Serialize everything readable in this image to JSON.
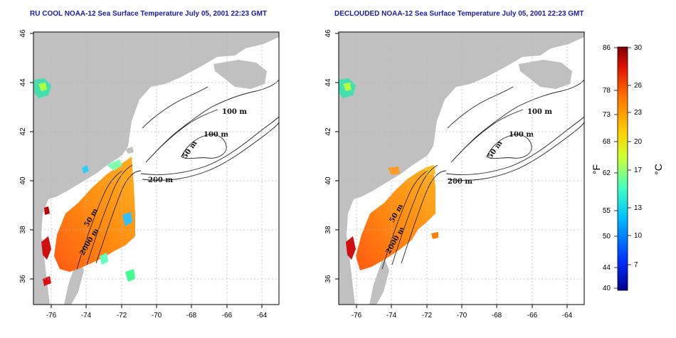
{
  "maps": [
    {
      "title": "RU COOL NOAA-12 Sea Surface Temperature July 05, 2001 22:23 GMT",
      "contour_labels": [
        "100 m",
        "100 m",
        "50 m",
        "200 m",
        "50 m",
        "2000 m"
      ]
    },
    {
      "title": "DECLOUDED NOAA-12 Sea Surface Temperature July 05, 2001 22:23 GMT",
      "contour_labels": [
        "100 m",
        "100 m",
        "50 m",
        "200 m",
        "50 m",
        "2000 m"
      ]
    }
  ],
  "axes": {
    "x_ticks": [
      "-76",
      "-74",
      "-72",
      "-70",
      "-68",
      "-66",
      "-64"
    ],
    "y_ticks": [
      "36",
      "38",
      "40",
      "42",
      "44",
      "46"
    ]
  },
  "colorbar": {
    "fahrenheit_label": "°F",
    "celsius_label": "°C",
    "fahrenheit_ticks": [
      "86",
      "78",
      "73",
      "68",
      "62",
      "55",
      "50",
      "44",
      "40"
    ],
    "celsius_ticks": [
      "30",
      "26",
      "23",
      "20",
      "17",
      "13",
      "10",
      "7"
    ]
  },
  "colors": {
    "land": "#c0c0c0",
    "title": "#1a1aa8",
    "grid": "#b8b8b8",
    "scale": [
      "#00008f",
      "#0040ff",
      "#00c0ff",
      "#40ffc0",
      "#c0ff40",
      "#ffd000",
      "#ff8000",
      "#e01000",
      "#800000"
    ]
  }
}
